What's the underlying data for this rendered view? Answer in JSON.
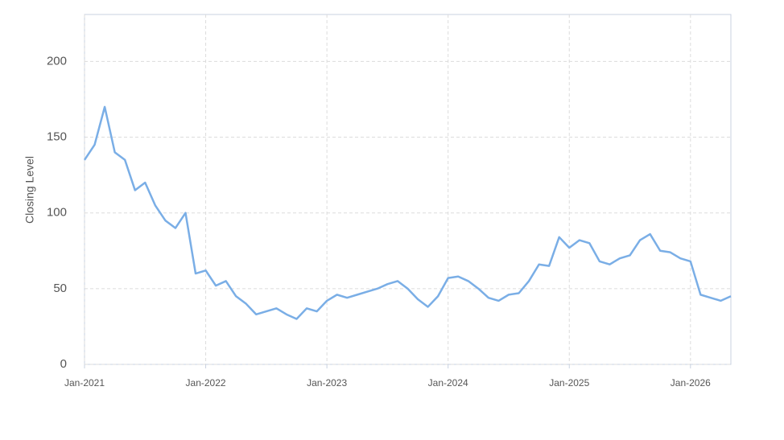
{
  "chart_data": {
    "type": "line",
    "y_label": "Closing Level",
    "x": [
      "2021-01",
      "2021-02",
      "2021-03",
      "2021-04",
      "2021-05",
      "2021-06",
      "2021-07",
      "2021-08",
      "2021-09",
      "2021-10",
      "2021-11",
      "2021-12",
      "2022-01",
      "2022-02",
      "2022-03",
      "2022-04",
      "2022-05",
      "2022-06",
      "2022-07",
      "2022-08",
      "2022-09",
      "2022-10",
      "2022-11",
      "2022-12",
      "2023-01",
      "2023-02",
      "2023-03",
      "2023-04",
      "2023-05",
      "2023-06",
      "2023-07",
      "2023-08",
      "2023-09",
      "2023-10",
      "2023-11",
      "2023-12",
      "2024-01",
      "2024-02",
      "2024-03",
      "2024-04",
      "2024-05",
      "2024-06",
      "2024-07",
      "2024-08",
      "2024-09",
      "2024-10",
      "2024-11",
      "2024-12",
      "2025-01",
      "2025-02",
      "2025-03",
      "2025-04",
      "2025-05",
      "2025-06",
      "2025-07",
      "2025-08",
      "2025-09",
      "2025-10",
      "2025-11",
      "2025-12",
      "2026-01",
      "2026-02",
      "2026-03",
      "2026-04",
      "2026-05"
    ],
    "series": [
      {
        "color": "#7aaee6",
        "values": [
          135,
          145,
          170,
          140,
          135,
          115,
          120,
          105,
          95,
          90,
          100,
          60,
          62,
          52,
          55,
          45,
          40,
          33,
          35,
          37,
          33,
          30,
          37,
          35,
          42,
          46,
          44,
          46,
          48,
          50,
          53,
          55,
          50,
          43,
          38,
          45,
          57,
          58,
          55,
          50,
          44,
          42,
          46,
          47,
          55,
          66,
          65,
          84,
          77,
          82,
          80,
          68,
          66,
          70,
          72,
          82,
          86,
          75,
          74,
          70,
          68,
          46,
          44,
          42,
          45
        ]
      }
    ],
    "xlim": [
      "2021-01",
      "2026-05"
    ],
    "xticks": [
      {
        "value": "2021-01",
        "label": "Jan-2021"
      },
      {
        "value": "2022-01",
        "label": "Jan-2022"
      },
      {
        "value": "2023-01",
        "label": "Jan-2023"
      },
      {
        "value": "2024-01",
        "label": "Jan-2024"
      },
      {
        "value": "2025-01",
        "label": "Jan-2025"
      },
      {
        "value": "2026-01",
        "label": "Jan-2026"
      }
    ],
    "ylim": [
      0,
      231
    ],
    "yticks": [
      0,
      50,
      100,
      150,
      200
    ],
    "grid": true
  }
}
